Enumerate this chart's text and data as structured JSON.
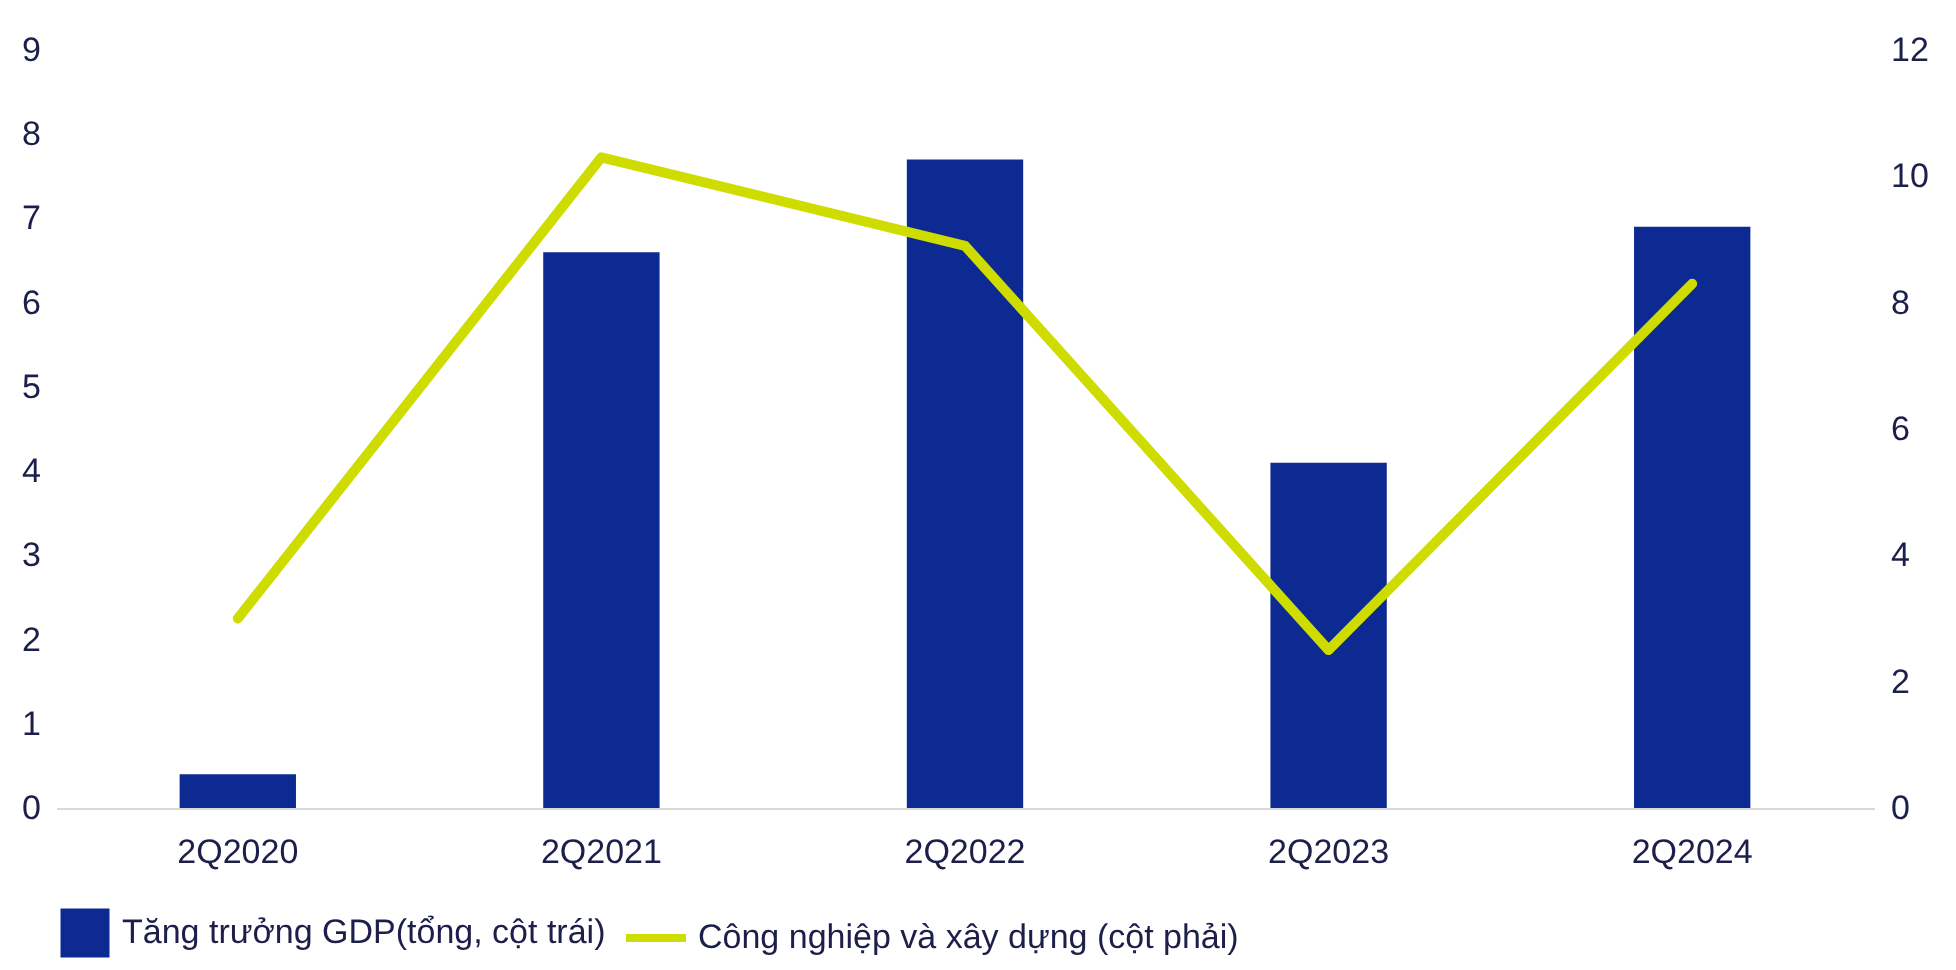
{
  "chart_data": {
    "type": "bar",
    "categories": [
      "2Q2020",
      "2Q2021",
      "2Q2022",
      "2Q2023",
      "2Q2024"
    ],
    "series": [
      {
        "name": "Tăng trưởng GDP(tổng, cột trái)",
        "color": "#0c2a92",
        "values": [
          0.4,
          6.6,
          7.7,
          4.1,
          6.9
        ]
      },
      {
        "name": "Công nghiệp và xây dựng (cột phải)",
        "type": "line",
        "axis": "y2",
        "color": "#cedc00",
        "values": [
          3.0,
          10.3,
          8.9,
          2.5,
          8.3
        ]
      }
    ],
    "ylim": [
      0,
      9
    ],
    "yticks": [
      0,
      1,
      2,
      3,
      4,
      5,
      6,
      7,
      8,
      9
    ],
    "y2lim": [
      0,
      12
    ],
    "y2ticks": [
      0,
      2,
      4,
      6,
      8,
      10,
      12
    ],
    "grid": false,
    "legend": "bottom",
    "marker": "none"
  }
}
